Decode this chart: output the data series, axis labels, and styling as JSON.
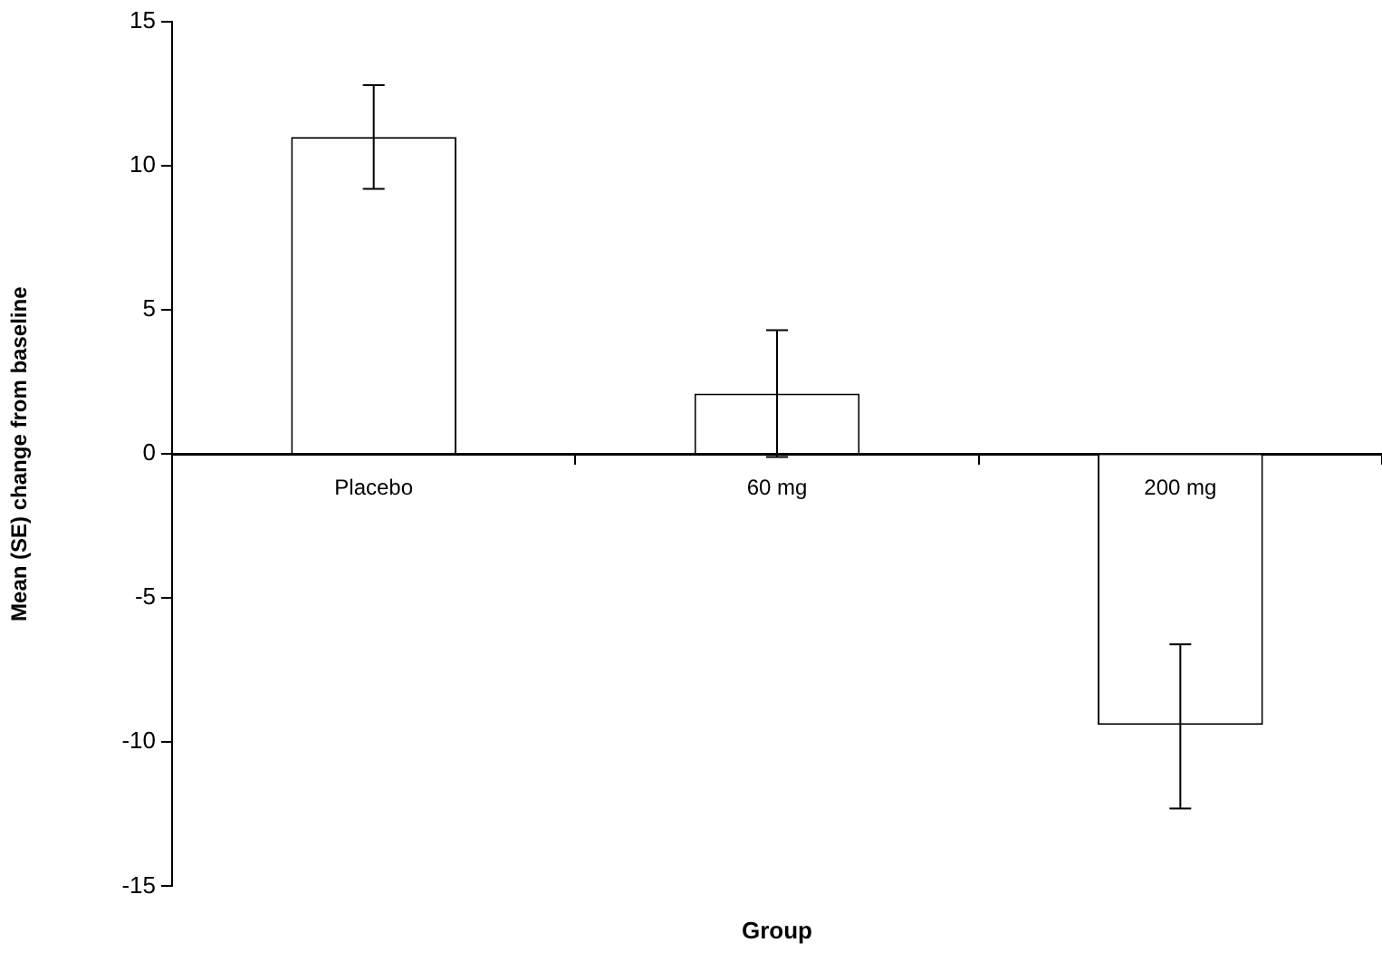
{
  "chart_data": {
    "type": "bar",
    "xlabel": "Group",
    "ylabel": "Mean (SE) change from baseline",
    "categories": [
      "Placebo",
      "60 mg",
      "200 mg"
    ],
    "values": [
      11.0,
      2.1,
      -9.4
    ],
    "errors": [
      [
        9.2,
        12.8
      ],
      [
        -0.1,
        4.3
      ],
      [
        -12.3,
        -6.6
      ]
    ],
    "color": "#ffffff",
    "ylim": [
      -15,
      15
    ],
    "yticks": [
      -15,
      -10,
      -5,
      0,
      5,
      10,
      15
    ],
    "grid": false,
    "legend": false
  }
}
